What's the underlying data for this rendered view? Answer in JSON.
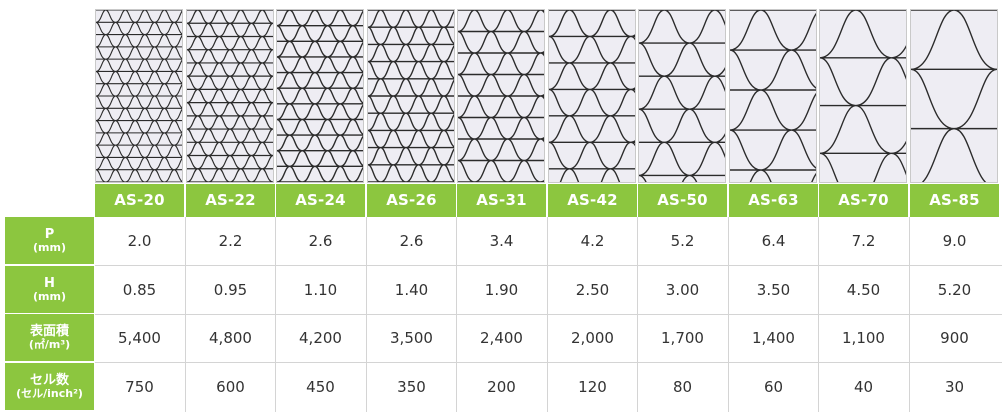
{
  "models": [
    "AS-20",
    "AS-22",
    "AS-24",
    "AS-26",
    "AS-31",
    "AS-42",
    "AS-50",
    "AS-63",
    "AS-70",
    "AS-85"
  ],
  "pattern_repeats": [
    {
      "cols": 4.4,
      "rows": 14
    },
    {
      "cols": 4.0,
      "rows": 13
    },
    {
      "cols": 3.4,
      "rows": 11
    },
    {
      "cols": 3.4,
      "rows": 10
    },
    {
      "cols": 2.6,
      "rows": 8
    },
    {
      "cols": 2.1,
      "rows": 6.5
    },
    {
      "cols": 1.7,
      "rows": 5.2
    },
    {
      "cols": 1.4,
      "rows": 4.3
    },
    {
      "cols": 1.2,
      "rows": 3.6
    },
    {
      "cols": 1.0,
      "rows": 2.9
    }
  ],
  "rows": [
    {
      "label": "P",
      "unit": "(mm)",
      "values": [
        "2.0",
        "2.2",
        "2.6",
        "2.6",
        "3.4",
        "4.2",
        "5.2",
        "6.4",
        "7.2",
        "9.0"
      ]
    },
    {
      "label": "H",
      "unit": "(mm)",
      "values": [
        "0.85",
        "0.95",
        "1.10",
        "1.40",
        "1.90",
        "2.50",
        "3.00",
        "3.50",
        "4.50",
        "5.20"
      ]
    },
    {
      "label": "表面積",
      "unit": "(㎡/m³)",
      "values": [
        "5,400",
        "4,800",
        "4,200",
        "3,500",
        "2,400",
        "2,000",
        "1,700",
        "1,400",
        "1,100",
        "900"
      ]
    },
    {
      "label": "セル数",
      "unit": "(セル/inch²)",
      "values": [
        "750",
        "600",
        "450",
        "350",
        "200",
        "120",
        "80",
        "60",
        "40",
        "30"
      ]
    }
  ],
  "colors": {
    "accent": "#8cc63f",
    "text": "#333333",
    "grid": "#d4d4d4",
    "pattern_bg": "#eeedf3",
    "pattern_line": "#2b2b2b"
  }
}
